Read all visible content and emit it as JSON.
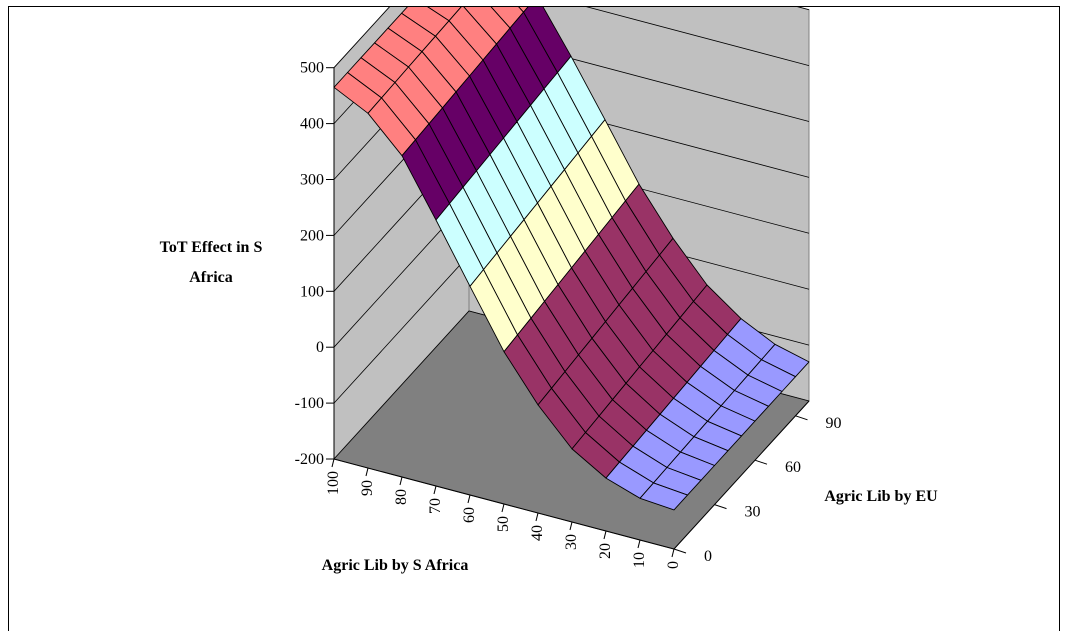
{
  "chart_data": {
    "type": "surface",
    "z_axis_title": [
      "ToT Effect in S",
      "Africa"
    ],
    "x_axis_title": "Agric Lib by S Africa",
    "y_axis_title": "Agric Lib by EU",
    "z_ticks": [
      "500",
      "400",
      "300",
      "200",
      "100",
      "0",
      "-100",
      "-200"
    ],
    "x_ticks": [
      "100",
      "90",
      "80",
      "70",
      "60",
      "50",
      "40",
      "30",
      "20",
      "10",
      "0"
    ],
    "y_ticks": [
      "90",
      "60",
      "30",
      "0"
    ],
    "zlim": [
      -200,
      500
    ],
    "x_range": [
      0,
      100
    ],
    "y_range": [
      0,
      100
    ],
    "color_bands": [
      {
        "from": -200,
        "to": -100,
        "color": "#9999FF"
      },
      {
        "from": -100,
        "to": 0,
        "color": "#993366"
      },
      {
        "from": 0,
        "to": 100,
        "color": "#993366"
      },
      {
        "from": 100,
        "to": 200,
        "color": "#FFFFCC"
      },
      {
        "from": 200,
        "to": 300,
        "color": "#CCFFFF"
      },
      {
        "from": 300,
        "to": 400,
        "color": "#660066"
      },
      {
        "from": 400,
        "to": 500,
        "color": "#FF8080"
      },
      {
        "from": 500,
        "to": 600,
        "color": "#0066CC"
      }
    ],
    "surface_z_at_x": [
      {
        "x": 0,
        "z": -130
      },
      {
        "x": 10,
        "z": -120
      },
      {
        "x": 20,
        "z": -95
      },
      {
        "x": 30,
        "z": -55
      },
      {
        "x": 40,
        "z": 10
      },
      {
        "x": 50,
        "z": 90
      },
      {
        "x": 60,
        "z": 190
      },
      {
        "x": 70,
        "z": 290
      },
      {
        "x": 80,
        "z": 385
      },
      {
        "x": 90,
        "z": 440
      },
      {
        "x": 100,
        "z": 465
      }
    ],
    "wall_color": "#C0C0C0",
    "floor_color": "#808080",
    "gridlines": true
  }
}
